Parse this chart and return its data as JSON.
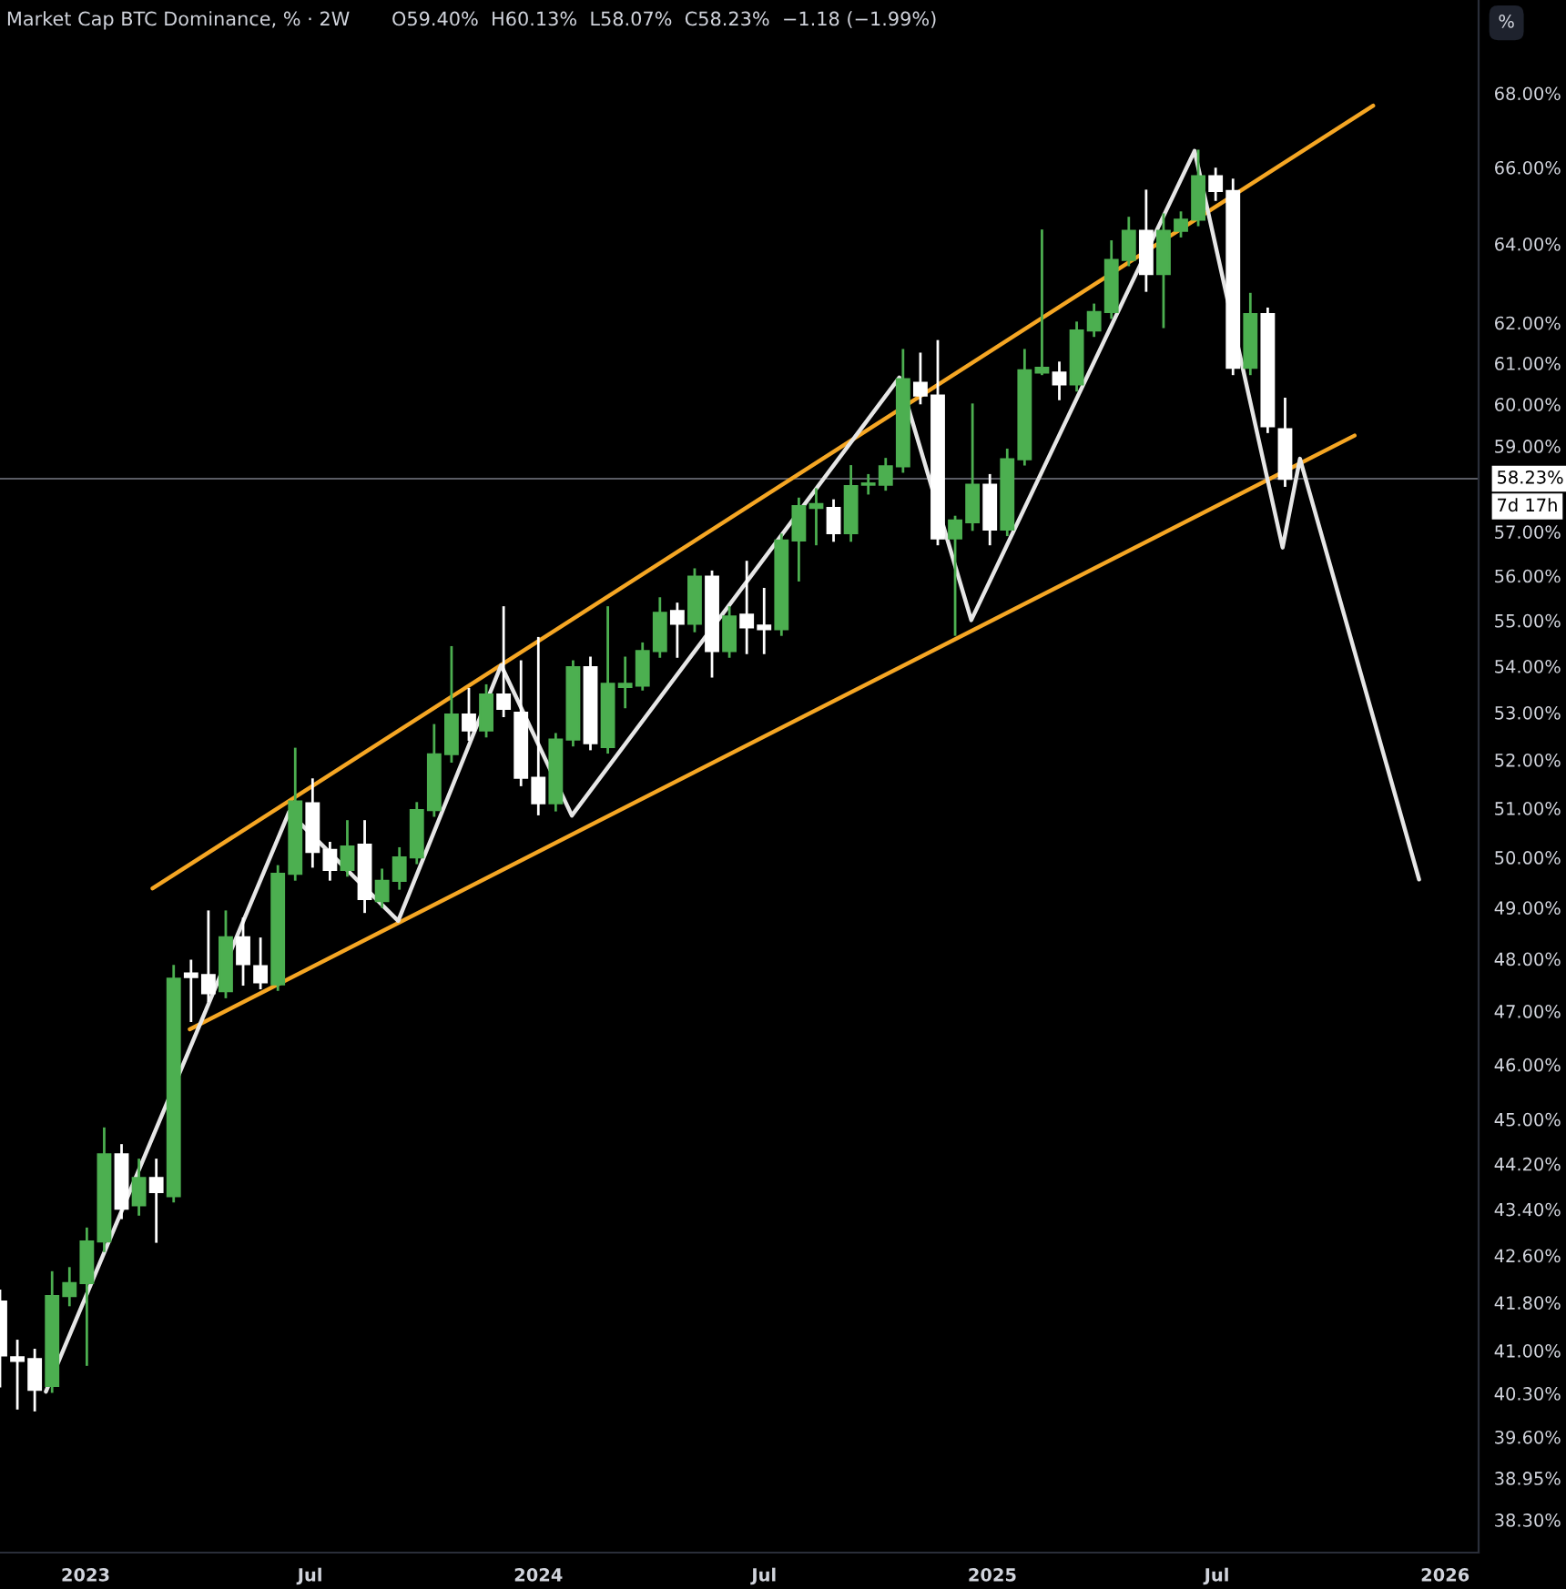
{
  "chart_data": {
    "type": "candlestick",
    "title": "Market Cap BTC Dominance, % · 2W",
    "subtitle": "O59.40%  H60.13%  L58.07%  C58.23%  −1.18 (−1.99%)",
    "annotations": [
      "7d 17h",
      "%"
    ],
    "x": [
      "2022-10-24",
      "2022-11-07",
      "2022-11-21",
      "2022-12-05",
      "2022-12-19",
      "2023-01-02",
      "2023-01-16",
      "2023-01-30",
      "2023-02-13",
      "2023-02-27",
      "2023-03-13",
      "2023-03-27",
      "2023-04-10",
      "2023-04-24",
      "2023-05-08",
      "2023-05-22",
      "2023-06-05",
      "2023-06-19",
      "2023-07-03",
      "2023-07-17",
      "2023-07-31",
      "2023-08-14",
      "2023-08-28",
      "2023-09-11",
      "2023-09-25",
      "2023-10-09",
      "2023-10-23",
      "2023-11-06",
      "2023-11-20",
      "2023-12-04",
      "2023-12-18",
      "2024-01-01",
      "2024-01-15",
      "2024-01-29",
      "2024-02-12",
      "2024-02-26",
      "2024-03-11",
      "2024-03-25",
      "2024-04-08",
      "2024-04-22",
      "2024-05-06",
      "2024-05-20",
      "2024-06-03",
      "2024-06-17",
      "2024-07-01",
      "2024-07-15",
      "2024-07-29",
      "2024-08-12",
      "2024-08-26",
      "2024-09-09",
      "2024-09-23",
      "2024-10-07",
      "2024-10-21",
      "2024-11-04",
      "2024-11-18",
      "2024-12-02",
      "2024-12-16",
      "2024-12-30",
      "2025-01-13",
      "2025-01-27",
      "2025-02-10",
      "2025-02-24",
      "2025-03-10",
      "2025-03-24",
      "2025-04-07",
      "2025-04-21",
      "2025-05-05",
      "2025-05-19",
      "2025-06-02",
      "2025-06-16",
      "2025-06-30",
      "2025-07-14",
      "2025-07-28",
      "2025-08-11",
      "2025-08-25"
    ],
    "ohlc": [
      [
        41.82,
        42.0,
        40.42,
        40.92
      ],
      [
        40.89,
        41.16,
        40.06,
        40.83
      ],
      [
        40.86,
        41.01,
        40.03,
        40.36
      ],
      [
        40.42,
        42.31,
        40.33,
        41.91
      ],
      [
        41.91,
        42.38,
        41.76,
        42.13
      ],
      [
        42.13,
        43.06,
        40.77,
        42.84
      ],
      [
        42.84,
        44.83,
        42.68,
        44.37
      ],
      [
        44.37,
        44.53,
        43.25,
        43.41
      ],
      [
        43.47,
        44.27,
        43.31,
        43.95
      ],
      [
        43.95,
        44.27,
        42.84,
        43.7
      ],
      [
        43.63,
        47.86,
        43.54,
        47.62
      ],
      [
        47.72,
        47.96,
        46.82,
        47.65
      ],
      [
        47.69,
        48.92,
        47.2,
        47.34
      ],
      [
        47.38,
        48.92,
        47.27,
        48.42
      ],
      [
        48.42,
        48.78,
        47.51,
        47.9
      ],
      [
        47.86,
        48.39,
        47.44,
        47.55
      ],
      [
        47.51,
        49.82,
        47.41,
        49.67
      ],
      [
        49.67,
        52.23,
        49.56,
        51.14
      ],
      [
        51.1,
        51.59,
        49.82,
        50.11
      ],
      [
        50.15,
        50.29,
        49.56,
        49.75
      ],
      [
        49.75,
        50.73,
        49.64,
        50.22
      ],
      [
        50.26,
        50.73,
        48.92,
        49.17
      ],
      [
        49.13,
        49.75,
        49.02,
        49.53
      ],
      [
        49.53,
        50.18,
        49.38,
        50.0
      ],
      [
        50.0,
        51.1,
        49.89,
        50.96
      ],
      [
        50.96,
        52.73,
        50.85,
        52.12
      ],
      [
        52.12,
        54.41,
        51.97,
        52.96
      ],
      [
        52.96,
        53.5,
        52.43,
        52.62
      ],
      [
        52.62,
        53.58,
        52.5,
        53.39
      ],
      [
        53.39,
        55.29,
        52.93,
        53.08
      ],
      [
        53.0,
        54.1,
        51.48,
        51.63
      ],
      [
        51.63,
        54.61,
        50.88,
        51.1
      ],
      [
        51.1,
        52.54,
        50.96,
        52.43
      ],
      [
        52.43,
        54.1,
        52.31,
        53.98
      ],
      [
        53.98,
        54.18,
        52.23,
        52.35
      ],
      [
        52.27,
        55.29,
        52.16,
        53.62
      ],
      [
        53.55,
        54.18,
        53.12,
        53.62
      ],
      [
        53.58,
        54.49,
        53.5,
        54.33
      ],
      [
        54.33,
        55.49,
        54.21,
        55.17
      ],
      [
        55.21,
        55.37,
        54.21,
        54.93
      ],
      [
        54.93,
        56.14,
        54.77,
        55.98
      ],
      [
        55.98,
        56.09,
        53.78,
        54.33
      ],
      [
        54.33,
        55.29,
        54.21,
        55.09
      ],
      [
        55.13,
        56.31,
        54.29,
        54.85
      ],
      [
        54.89,
        55.7,
        54.29,
        54.81
      ],
      [
        54.81,
        56.93,
        54.69,
        56.8
      ],
      [
        56.8,
        57.76,
        55.9,
        57.59
      ],
      [
        57.55,
        57.98,
        56.72,
        57.64
      ],
      [
        57.55,
        57.72,
        56.8,
        56.97
      ],
      [
        56.97,
        58.52,
        56.8,
        58.06
      ],
      [
        58.09,
        58.31,
        57.89,
        58.12
      ],
      [
        58.09,
        58.69,
        57.98,
        58.52
      ],
      [
        58.52,
        61.32,
        58.4,
        60.61
      ],
      [
        60.52,
        61.23,
        60.03,
        60.21
      ],
      [
        60.21,
        61.54,
        56.72,
        56.85
      ],
      [
        56.85,
        57.34,
        54.69,
        57.26
      ],
      [
        57.22,
        59.99,
        57.05,
        58.09
      ],
      [
        58.09,
        58.31,
        56.72,
        57.05
      ],
      [
        57.05,
        58.91,
        56.93,
        58.69
      ],
      [
        58.69,
        61.32,
        58.57,
        60.83
      ],
      [
        60.77,
        64.34,
        60.74,
        60.89
      ],
      [
        60.77,
        61.01,
        60.13,
        60.48
      ],
      [
        60.48,
        62.0,
        60.34,
        61.81
      ],
      [
        61.81,
        62.45,
        61.68,
        62.27
      ],
      [
        62.27,
        64.06,
        62.13,
        63.59
      ],
      [
        63.59,
        64.67,
        63.46,
        64.34
      ],
      [
        64.34,
        65.38,
        62.81,
        63.23
      ],
      [
        63.23,
        64.76,
        61.9,
        64.34
      ],
      [
        64.34,
        64.81,
        64.2,
        64.63
      ],
      [
        64.63,
        66.44,
        64.49,
        65.77
      ],
      [
        65.77,
        65.96,
        65.15,
        65.38
      ],
      [
        65.38,
        65.67,
        60.74,
        60.89
      ],
      [
        60.89,
        62.72,
        60.74,
        62.22
      ],
      [
        62.22,
        62.35,
        59.34,
        59.47
      ],
      [
        59.4,
        60.13,
        58.07,
        58.23
      ]
    ],
    "colors": [
      "#ffffff",
      "#ffffff",
      "#ffffff",
      "#4caf50",
      "#4caf50",
      "#4caf50",
      "#4caf50",
      "#ffffff",
      "#4caf50",
      "#ffffff",
      "#4caf50",
      "#ffffff",
      "#ffffff",
      "#4caf50",
      "#ffffff",
      "#ffffff",
      "#4caf50",
      "#4caf50",
      "#ffffff",
      "#ffffff",
      "#4caf50",
      "#ffffff",
      "#4caf50",
      "#4caf50",
      "#4caf50",
      "#4caf50",
      "#4caf50",
      "#ffffff",
      "#4caf50",
      "#ffffff",
      "#ffffff",
      "#ffffff",
      "#4caf50",
      "#4caf50",
      "#ffffff",
      "#4caf50",
      "#4caf50",
      "#4caf50",
      "#4caf50",
      "#ffffff",
      "#4caf50",
      "#ffffff",
      "#4caf50",
      "#ffffff",
      "#ffffff",
      "#4caf50",
      "#4caf50",
      "#4caf50",
      "#ffffff",
      "#4caf50",
      "#4caf50",
      "#4caf50",
      "#4caf50",
      "#ffffff",
      "#ffffff",
      "#4caf50",
      "#4caf50",
      "#ffffff",
      "#4caf50",
      "#4caf50",
      "#4caf50",
      "#ffffff",
      "#4caf50",
      "#4caf50",
      "#4caf50",
      "#4caf50",
      "#ffffff",
      "#4caf50",
      "#4caf50",
      "#4caf50",
      "#ffffff",
      "#ffffff",
      "#4caf50",
      "#ffffff",
      "#ffffff"
    ],
    "series": [
      {
        "type": "line",
        "color": "#f5a623",
        "x": [
          "2023-02-24",
          "2025-11-04"
        ],
        "values": [
          49.38,
          67.66
        ]
      },
      {
        "type": "line",
        "color": "#f5a623",
        "x": [
          "2023-03-26",
          "2025-10-20"
        ],
        "values": [
          46.66,
          59.25
        ]
      },
      {
        "type": "line",
        "color": "#e6e6e6",
        "x": [
          "2022-11-30",
          "2023-06-14",
          "2023-09-10",
          "2023-12-02",
          "2024-01-28",
          "2024-10-18",
          "2024-12-15",
          "2025-06-13",
          "2025-08-23",
          "2025-09-06",
          "2025-12-11"
        ],
        "values": [
          40.33,
          50.92,
          48.74,
          54.02,
          50.85,
          60.65,
          55.01,
          66.44,
          56.64,
          58.7,
          49.56
        ]
      }
    ],
    "ref_lines": [
      {
        "axis": "y",
        "value": 58.23,
        "label": "58.23%",
        "color": "#787b86",
        "line_style": "solid"
      }
    ],
    "log": "y",
    "xlim": [
      "2022-10-24",
      "2026-01-28"
    ],
    "xticks": [
      {
        "value": "2023-01-01",
        "label": "2023"
      },
      {
        "value": "2023-07-01",
        "label": "Jul"
      },
      {
        "value": "2024-01-01",
        "label": "2024"
      },
      {
        "value": "2024-07-01",
        "label": "Jul"
      },
      {
        "value": "2025-01-01",
        "label": "2025"
      },
      {
        "value": "2025-07-01",
        "label": "Jul"
      },
      {
        "value": "2026-01-01",
        "label": "2026"
      }
    ],
    "ylim": [
      37.8,
      70.6
    ],
    "yticks": [
      {
        "value": 38.3,
        "label": "38.30%"
      },
      {
        "value": 38.95,
        "label": "38.95%"
      },
      {
        "value": 39.6,
        "label": "39.60%"
      },
      {
        "value": 40.3,
        "label": "40.30%"
      },
      {
        "value": 41.0,
        "label": "41.00%"
      },
      {
        "value": 41.8,
        "label": "41.80%"
      },
      {
        "value": 42.6,
        "label": "42.60%"
      },
      {
        "value": 43.4,
        "label": "43.40%"
      },
      {
        "value": 44.2,
        "label": "44.20%"
      },
      {
        "value": 45,
        "label": "45.00%"
      },
      {
        "value": 46,
        "label": "46.00%"
      },
      {
        "value": 47,
        "label": "47.00%"
      },
      {
        "value": 48,
        "label": "48.00%"
      },
      {
        "value": 49,
        "label": "49.00%"
      },
      {
        "value": 50,
        "label": "50.00%"
      },
      {
        "value": 51,
        "label": "51.00%"
      },
      {
        "value": 52,
        "label": "52.00%"
      },
      {
        "value": 53,
        "label": "53.00%"
      },
      {
        "value": 54,
        "label": "54.00%"
      },
      {
        "value": 55,
        "label": "55.00%"
      },
      {
        "value": 56,
        "label": "56.00%"
      },
      {
        "value": 57,
        "label": "57.00%"
      },
      {
        "value": 59,
        "label": "59.00%"
      },
      {
        "value": 60,
        "label": "60.00%"
      },
      {
        "value": 61,
        "label": "61.00%"
      },
      {
        "value": 62,
        "label": "62.00%"
      },
      {
        "value": 64,
        "label": "64.00%"
      },
      {
        "value": 66,
        "label": "66.00%"
      },
      {
        "value": 68,
        "label": "68.00%"
      }
    ],
    "grid": false,
    "legend": false
  }
}
